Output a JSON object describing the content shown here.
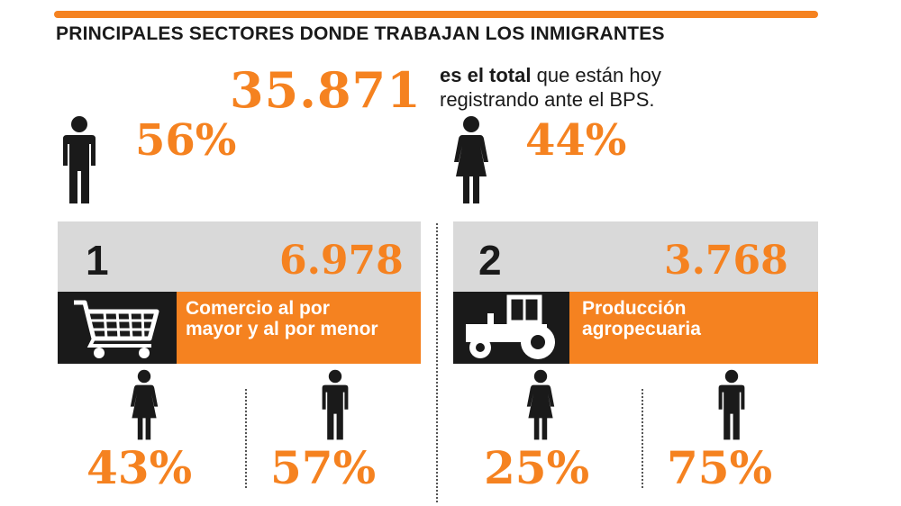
{
  "title": "PRINCIPALES SECTORES DONDE TRABAJAN LOS INMIGRANTES",
  "total": {
    "value": "35.871",
    "label_bold": "es el total",
    "label_rest": " que están hoy registrando ante el BPS."
  },
  "overall": {
    "male_pct": "56%",
    "female_pct": "44%"
  },
  "sectors": [
    {
      "rank": "1",
      "count": "6.978",
      "label": "Comercio al por mayor y al por menor",
      "icon": "shopping-cart-icon",
      "female_pct": "43%",
      "male_pct": "57%"
    },
    {
      "rank": "2",
      "count": "3.768",
      "label": "Producción agropecuaria",
      "icon": "tractor-icon",
      "female_pct": "25%",
      "male_pct": "75%"
    }
  ],
  "colors": {
    "accent": "#f58220",
    "dark": "#1a1a1a",
    "gray": "#d9d9d9"
  },
  "chart_data": {
    "type": "table",
    "title": "PRINCIPALES SECTORES DONDE TRABAJAN LOS INMIGRANTES",
    "total_registered": 35871,
    "overall_gender_split": {
      "male": 56,
      "female": 44
    },
    "sectors": [
      {
        "rank": 1,
        "name": "Comercio al por mayor y al por menor",
        "workers": 6978,
        "female": 43,
        "male": 57
      },
      {
        "rank": 2,
        "name": "Producción agropecuaria",
        "workers": 3768,
        "female": 25,
        "male": 75
      }
    ]
  }
}
